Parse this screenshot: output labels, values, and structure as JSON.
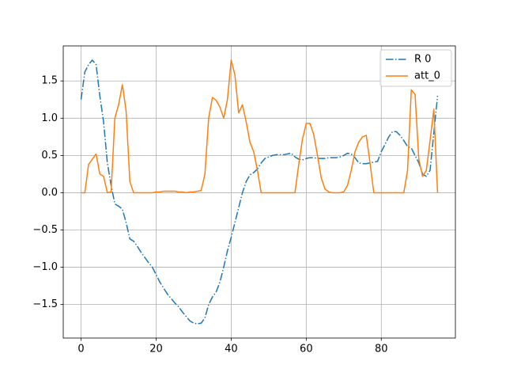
{
  "chart_data": {
    "type": "line",
    "x": [
      0,
      1,
      2,
      3,
      4,
      5,
      6,
      7,
      8,
      9,
      10,
      11,
      12,
      13,
      14,
      15,
      16,
      17,
      18,
      19,
      20,
      21,
      22,
      23,
      24,
      25,
      26,
      27,
      28,
      29,
      30,
      31,
      32,
      33,
      34,
      35,
      36,
      37,
      38,
      39,
      40,
      41,
      42,
      43,
      44,
      45,
      46,
      47,
      48,
      49,
      50,
      51,
      52,
      53,
      54,
      55,
      56,
      57,
      58,
      59,
      60,
      61,
      62,
      63,
      64,
      65,
      66,
      67,
      68,
      69,
      70,
      71,
      72,
      73,
      74,
      75,
      76,
      77,
      78,
      79,
      80,
      81,
      82,
      83,
      84,
      85,
      86,
      87,
      88,
      89,
      90,
      91,
      92,
      93,
      94,
      95
    ],
    "series": [
      {
        "name": "R 0",
        "color": "#1f77b4",
        "dash": "dashdot",
        "values": [
          1.25,
          1.62,
          1.72,
          1.78,
          1.72,
          1.3,
          0.95,
          0.4,
          0.1,
          -0.15,
          -0.18,
          -0.22,
          -0.4,
          -0.62,
          -0.65,
          -0.72,
          -0.8,
          -0.87,
          -0.94,
          -1.0,
          -1.1,
          -1.2,
          -1.28,
          -1.36,
          -1.42,
          -1.48,
          -1.53,
          -1.6,
          -1.66,
          -1.72,
          -1.75,
          -1.76,
          -1.75,
          -1.68,
          -1.5,
          -1.4,
          -1.33,
          -1.2,
          -1.0,
          -0.78,
          -0.6,
          -0.4,
          -0.2,
          0.0,
          0.15,
          0.24,
          0.27,
          0.32,
          0.4,
          0.46,
          0.48,
          0.5,
          0.51,
          0.51,
          0.51,
          0.52,
          0.53,
          0.48,
          0.45,
          0.44,
          0.46,
          0.47,
          0.47,
          0.46,
          0.46,
          0.46,
          0.47,
          0.47,
          0.47,
          0.48,
          0.5,
          0.53,
          0.52,
          0.47,
          0.4,
          0.39,
          0.39,
          0.4,
          0.41,
          0.42,
          0.55,
          0.65,
          0.75,
          0.82,
          0.82,
          0.77,
          0.7,
          0.62,
          0.6,
          0.5,
          0.4,
          0.25,
          0.22,
          0.3,
          0.8,
          1.3
        ]
      },
      {
        "name": "att_0",
        "color": "#ff7f0e",
        "dash": "solid",
        "values": [
          0,
          0,
          0.38,
          0.45,
          0.52,
          0.25,
          0.22,
          0,
          0.01,
          1.0,
          1.18,
          1.45,
          1.1,
          0.15,
          0,
          0,
          0,
          0,
          0,
          0,
          0.01,
          0.01,
          0.02,
          0.02,
          0.02,
          0.02,
          0.01,
          0.01,
          0,
          0.01,
          0.01,
          0.02,
          0.03,
          0.25,
          1.0,
          1.28,
          1.24,
          1.15,
          1.0,
          1.25,
          1.78,
          1.58,
          1.07,
          1.18,
          0.95,
          0.68,
          0.55,
          0.3,
          0,
          0,
          0,
          0,
          0,
          0,
          0,
          0,
          0,
          0,
          0.38,
          0.72,
          0.93,
          0.93,
          0.78,
          0.5,
          0.2,
          0.05,
          0.01,
          0,
          0,
          0,
          0.01,
          0.1,
          0.3,
          0.55,
          0.68,
          0.75,
          0.77,
          0.4,
          0,
          0,
          0,
          0,
          0,
          0,
          0,
          0,
          0,
          0.3,
          1.38,
          1.32,
          0.45,
          0.22,
          0.3,
          0.7,
          1.12,
          0
        ]
      }
    ],
    "xlim": [
      -4.75,
      99.75
    ],
    "ylim": [
      -1.95,
      1.97
    ],
    "xticks": [
      0,
      20,
      40,
      60,
      80
    ],
    "yticks": [
      {
        "value": -1.5,
        "label": "−1.5"
      },
      {
        "value": -1.0,
        "label": "−1.0"
      },
      {
        "value": -0.5,
        "label": "−0.5"
      },
      {
        "value": 0.0,
        "label": "0.0"
      },
      0.5,
      {
        "value": 1.0,
        "label": "1.0"
      },
      1.5
    ],
    "grid": true,
    "legend": "upper right"
  }
}
